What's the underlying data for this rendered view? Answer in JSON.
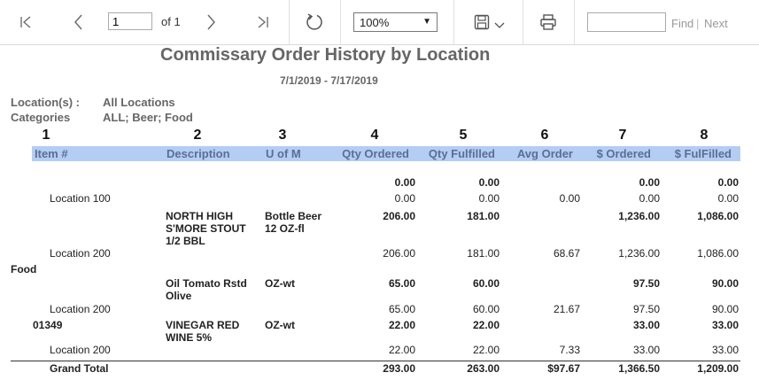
{
  "toolbar": {
    "page_value": "1",
    "page_of": "of 1",
    "zoom": "100%",
    "find_label": "Find",
    "find_separator": "|",
    "next_label": "Next"
  },
  "report": {
    "title": "Commissary Order History by Location",
    "date_range": "7/1/2019 - 7/17/2019",
    "location_label": "Location(s) :",
    "location_value": "All Locations",
    "categories_label": "Categories",
    "categories_value": "ALL; Beer; Food",
    "column_numbers": [
      "1",
      "2",
      "3",
      "4",
      "5",
      "6",
      "7",
      "8"
    ],
    "headers": [
      "Item #",
      "Description",
      "U of M",
      "Qty Ordered",
      "Qty Fulfilled",
      "Avg Order",
      "$ Ordered",
      "$ FulFilled"
    ],
    "rows": [
      {
        "bold": true,
        "item": "",
        "desc": "",
        "uom": "",
        "qty_ordered": "0.00",
        "qty_fulfilled": "0.00",
        "avg": "",
        "ordered": "0.00",
        "fulfilled": "0.00"
      },
      {
        "bold": false,
        "item": "Location 100",
        "desc": "",
        "uom": "",
        "qty_ordered": "0.00",
        "qty_fulfilled": "0.00",
        "avg": "0.00",
        "ordered": "0.00",
        "fulfilled": "0.00"
      },
      {
        "bold": true,
        "item": "",
        "desc": "NORTH HIGH S'MORE STOUT 1/2 BBL",
        "uom": "Bottle Beer 12 OZ-fl",
        "qty_ordered": "206.00",
        "qty_fulfilled": "181.00",
        "avg": "",
        "ordered": "1,236.00",
        "fulfilled": "1,086.00"
      },
      {
        "bold": false,
        "item": "Location 200",
        "desc": "",
        "uom": "",
        "qty_ordered": "206.00",
        "qty_fulfilled": "181.00",
        "avg": "68.67",
        "ordered": "1,236.00",
        "fulfilled": "1,086.00"
      },
      {
        "bold": true,
        "category": "Food"
      },
      {
        "bold": true,
        "item": "",
        "desc": "Oil Tomato Rstd Olive",
        "uom": "OZ-wt",
        "qty_ordered": "65.00",
        "qty_fulfilled": "60.00",
        "avg": "",
        "ordered": "97.50",
        "fulfilled": "90.00"
      },
      {
        "bold": false,
        "item": "Location 200",
        "desc": "",
        "uom": "",
        "qty_ordered": "65.00",
        "qty_fulfilled": "60.00",
        "avg": "21.67",
        "ordered": "97.50",
        "fulfilled": "90.00"
      },
      {
        "bold": true,
        "item": "01349",
        "desc": "VINEGAR RED WINE 5%",
        "uom": "OZ-wt",
        "qty_ordered": "22.00",
        "qty_fulfilled": "22.00",
        "avg": "",
        "ordered": "33.00",
        "fulfilled": "33.00"
      },
      {
        "bold": false,
        "item": "Location 200",
        "desc": "",
        "uom": "",
        "qty_ordered": "22.00",
        "qty_fulfilled": "22.00",
        "avg": "7.33",
        "ordered": "33.00",
        "fulfilled": "33.00"
      }
    ],
    "grand_total": {
      "label": "Grand Total",
      "qty_ordered": "293.00",
      "qty_fulfilled": "263.00",
      "avg": "$97.67",
      "ordered": "1,366.50",
      "fulfilled": "1,209.00"
    }
  }
}
